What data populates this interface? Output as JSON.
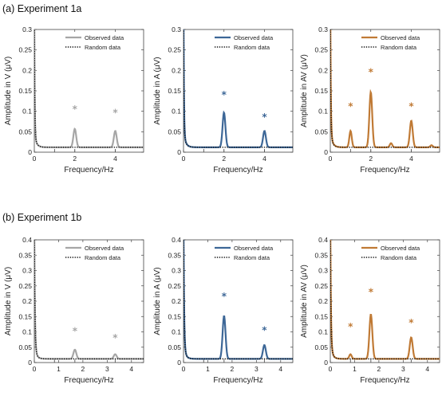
{
  "figure": {
    "row_titles": [
      "(a) Experiment 1a",
      "(b) Experiment 1b"
    ],
    "legend": {
      "observed": "Observed data",
      "random": "Random data"
    }
  },
  "chart_data": [
    {
      "type": "line",
      "row": 0,
      "col": 0,
      "color": "#a6a6a6",
      "ylabel": "Amplitude in V (μV)",
      "xlabel": "Frequency/Hz",
      "xlim": [
        0,
        5.4
      ],
      "ylim": [
        0,
        0.3
      ],
      "xticks": [
        0,
        2,
        4
      ],
      "yticks": [
        0,
        0.05,
        0.1,
        0.15,
        0.2,
        0.25,
        0.3
      ],
      "legend": "top-right",
      "base": [
        0.3,
        0.02,
        0.03,
        0.11
      ],
      "random_base": [
        0.3,
        0.022,
        0.026,
        0.11
      ],
      "peaks": [
        [
          1,
          0.0,
          0.08
        ],
        [
          2,
          0.045,
          0.07
        ],
        [
          4,
          0.04,
          0.07
        ]
      ],
      "dashed_x": [
        1,
        2,
        4
      ],
      "stars": [
        [
          2,
          0.107
        ],
        [
          4,
          0.098
        ]
      ],
      "series": [
        {
          "name": "Observed data"
        },
        {
          "name": "Random data"
        }
      ]
    },
    {
      "type": "line",
      "row": 0,
      "col": 1,
      "color": "#3d6797",
      "ylabel": "Amplitude in A (μV)",
      "xlabel": "Frequency/Hz",
      "xlim": [
        0,
        5.4
      ],
      "ylim": [
        0,
        0.3
      ],
      "xticks": [
        0,
        2,
        4
      ],
      "yticks": [
        0,
        0.05,
        0.1,
        0.15,
        0.2,
        0.25,
        0.3
      ],
      "legend": "top-right",
      "base": [
        0.3,
        0.022,
        0.033,
        0.11
      ],
      "random_base": [
        0.3,
        0.022,
        0.03,
        0.11
      ],
      "peaks": [
        [
          2,
          0.085,
          0.07
        ],
        [
          4,
          0.04,
          0.07
        ]
      ],
      "dashed_x": [
        1,
        2,
        4
      ],
      "stars": [
        [
          2,
          0.142
        ],
        [
          4,
          0.088
        ]
      ],
      "series": [
        {
          "name": "Observed data"
        },
        {
          "name": "Random data"
        }
      ]
    },
    {
      "type": "line",
      "row": 0,
      "col": 2,
      "color": "#c07a35",
      "ylabel": "Amplitude in AV (μV)",
      "xlabel": "Frequency/Hz",
      "xlim": [
        0,
        5.4
      ],
      "ylim": [
        0,
        0.3
      ],
      "xticks": [
        0,
        2,
        4
      ],
      "yticks": [
        0,
        0.05,
        0.1,
        0.15,
        0.2,
        0.25,
        0.3
      ],
      "legend": "top-right",
      "base": [
        0.3,
        0.025,
        0.033,
        0.11
      ],
      "random_base": [
        0.3,
        0.025,
        0.028,
        0.11
      ],
      "peaks": [
        [
          1,
          0.04,
          0.06
        ],
        [
          2,
          0.135,
          0.07
        ],
        [
          3,
          0.01,
          0.06
        ],
        [
          4,
          0.065,
          0.07
        ],
        [
          5,
          0.005,
          0.06
        ]
      ],
      "dashed_x": [
        1,
        2,
        4
      ],
      "stars": [
        [
          1,
          0.114
        ],
        [
          2,
          0.198
        ],
        [
          4,
          0.114
        ]
      ],
      "series": [
        {
          "name": "Observed data"
        },
        {
          "name": "Random data"
        }
      ]
    },
    {
      "type": "line",
      "row": 1,
      "col": 0,
      "color": "#a6a6a6",
      "ylabel": "Amplitude in V (μV)",
      "xlabel": "Frequency/Hz",
      "xlim": [
        0,
        4.5
      ],
      "ylim": [
        0,
        0.4
      ],
      "xticks": [
        0,
        1,
        2,
        3,
        4
      ],
      "yticks": [
        0,
        0.05,
        0.1,
        0.15,
        0.2,
        0.25,
        0.3,
        0.35,
        0.4
      ],
      "legend": "top-right",
      "base": [
        0.4,
        0.025,
        0.035,
        0.09
      ],
      "random_base": [
        0.4,
        0.025,
        0.032,
        0.09
      ],
      "peaks": [
        [
          1.67,
          0.03,
          0.06
        ],
        [
          3.33,
          0.015,
          0.06
        ]
      ],
      "dashed_x": [
        0.83,
        1.67,
        3.33
      ],
      "stars": [
        [
          1.67,
          0.105
        ],
        [
          3.33,
          0.083
        ]
      ],
      "series": [
        {
          "name": "Observed data"
        },
        {
          "name": "Random data"
        }
      ]
    },
    {
      "type": "line",
      "row": 1,
      "col": 1,
      "color": "#3d6797",
      "ylabel": "Amplitude in A (μV)",
      "xlabel": "Frequency/Hz",
      "xlim": [
        0,
        4.5
      ],
      "ylim": [
        0,
        0.4
      ],
      "xticks": [
        0,
        1,
        2,
        3,
        4
      ],
      "yticks": [
        0,
        0.05,
        0.1,
        0.15,
        0.2,
        0.25,
        0.3,
        0.35,
        0.4
      ],
      "legend": "top-right",
      "base": [
        0.4,
        0.025,
        0.035,
        0.09
      ],
      "random_base": [
        0.4,
        0.025,
        0.032,
        0.09
      ],
      "peaks": [
        [
          1.67,
          0.14,
          0.06
        ],
        [
          3.33,
          0.045,
          0.06
        ]
      ],
      "dashed_x": [
        0.83,
        1.67,
        3.33
      ],
      "stars": [
        [
          1.67,
          0.218
        ],
        [
          3.33,
          0.108
        ]
      ],
      "series": [
        {
          "name": "Observed data"
        },
        {
          "name": "Random data"
        }
      ]
    },
    {
      "type": "line",
      "row": 1,
      "col": 2,
      "color": "#c07a35",
      "ylabel": "Amplitude in AV (μV)",
      "xlabel": "Frequency/Hz",
      "xlim": [
        0,
        4.5
      ],
      "ylim": [
        0,
        0.4
      ],
      "xticks": [
        0,
        1,
        2,
        3,
        4
      ],
      "yticks": [
        0,
        0.05,
        0.1,
        0.15,
        0.2,
        0.25,
        0.3,
        0.35,
        0.4
      ],
      "legend": "top-right",
      "base": [
        0.4,
        0.025,
        0.04,
        0.09
      ],
      "random_base": [
        0.4,
        0.025,
        0.036,
        0.09
      ],
      "peaks": [
        [
          0.83,
          0.015,
          0.05
        ],
        [
          1.67,
          0.145,
          0.06
        ],
        [
          3.33,
          0.07,
          0.06
        ]
      ],
      "dashed_x": [
        0.83,
        1.67,
        3.33
      ],
      "stars": [
        [
          0.83,
          0.12
        ],
        [
          1.67,
          0.232
        ],
        [
          3.33,
          0.132
        ]
      ],
      "series": [
        {
          "name": "Observed data"
        },
        {
          "name": "Random data"
        }
      ]
    }
  ]
}
